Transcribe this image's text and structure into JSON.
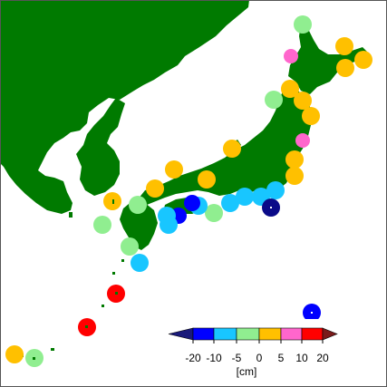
{
  "colors": {
    "land": "#007a00",
    "sea": "#ffffff",
    "frame": "#555555"
  },
  "legend": {
    "ticks": [
      "-20",
      "-10",
      "-5",
      "0",
      "5",
      "10",
      "20"
    ],
    "unit": "[cm]",
    "bins": [
      {
        "color": "#1a1a7a"
      },
      {
        "color": "#0000ff"
      },
      {
        "color": "#18c6ff"
      },
      {
        "color": "#90ee90"
      },
      {
        "color": "#ffc000"
      },
      {
        "color": "#ff66cc"
      },
      {
        "color": "#ff0000"
      },
      {
        "color": "#7a1a1a"
      }
    ]
  },
  "station_colors": {
    "deep_blue": "#0a0a88",
    "blue": "#0000ff",
    "cyan": "#18c6ff",
    "green": "#90ee90",
    "orange": "#ffc000",
    "pink": "#ff66cc",
    "red": "#ff0000"
  }
}
